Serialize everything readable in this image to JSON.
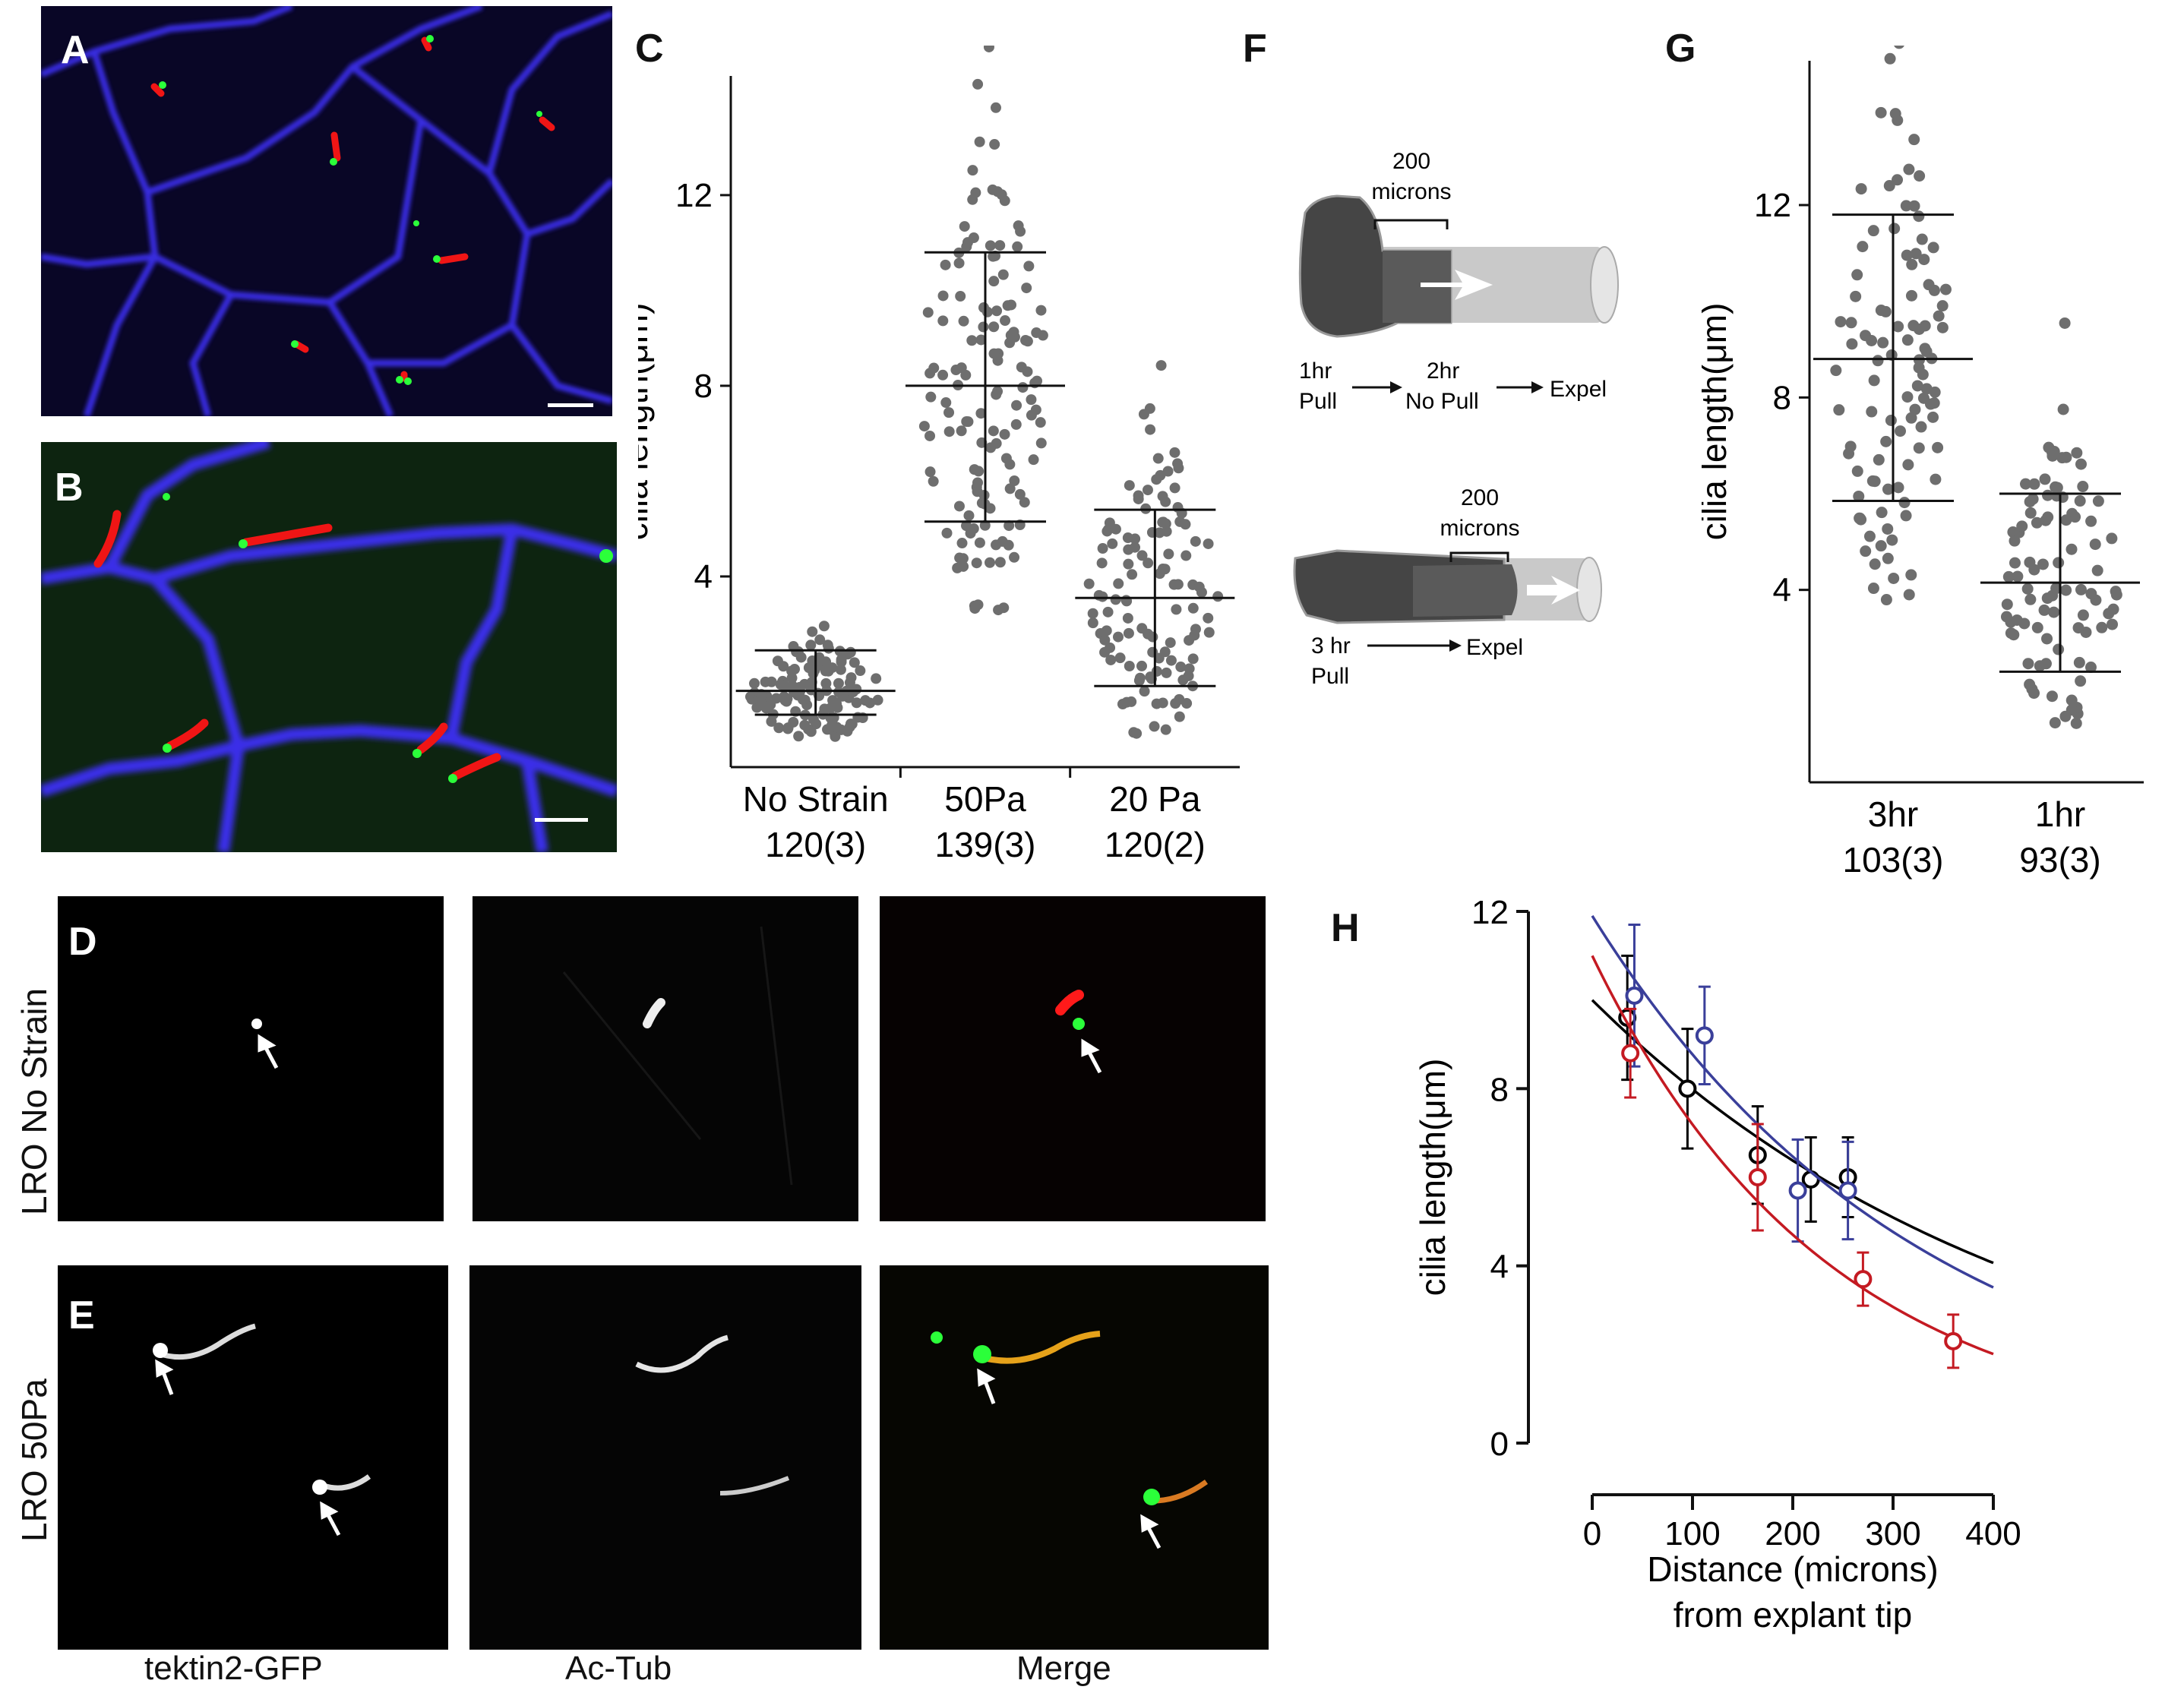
{
  "panels": {
    "A": {
      "letter": "A"
    },
    "B": {
      "letter": "B"
    },
    "C": {
      "letter": "C"
    },
    "D": {
      "letter": "D"
    },
    "E": {
      "letter": "E"
    },
    "F": {
      "letter": "F"
    },
    "G": {
      "letter": "G"
    },
    "H": {
      "letter": "H"
    }
  },
  "row_labels": {
    "D": "LRO No Strain",
    "E": "LRO 50Pa"
  },
  "column_labels": [
    "tektin2-GFP",
    "Ac-Tub",
    "Merge"
  ],
  "diagram_F": {
    "top": {
      "length_top": "200",
      "length_bottom": "microns",
      "step1_a": "1hr",
      "step1_b": "Pull",
      "step2_a": "2hr",
      "step2_b": "No Pull",
      "step3": "Expel"
    },
    "bottom": {
      "length_top": "200",
      "length_bottom": "microns",
      "step1_a": "3 hr",
      "step1_b": "Pull",
      "step2": "Expel"
    }
  },
  "colors": {
    "blue": "#2a2ad8",
    "red": "#e01818",
    "green": "#2bff3a",
    "dot": "#6e6e6e",
    "fit_blue": "#2f3591",
    "fit_red": "#c0151d",
    "fit_black": "#000000"
  },
  "chart_data": [
    {
      "id": "C",
      "type": "scatter",
      "ylabel": "cilia length(μm)",
      "ylim": [
        0,
        14.5
      ],
      "yticks": [
        4,
        8,
        12
      ],
      "categories": [
        {
          "name": "No Strain",
          "n": "120(3)",
          "mean": 1.6,
          "sd_low": 1.1,
          "sd_high": 2.45
        },
        {
          "name": "50Pa",
          "n": "139(3)",
          "mean": 8.0,
          "sd_low": 5.15,
          "sd_high": 10.8
        },
        {
          "name": "20 Pa",
          "n": "120(2)",
          "mean": 3.55,
          "sd_low": 1.7,
          "sd_high": 5.4
        }
      ]
    },
    {
      "id": "G",
      "type": "scatter",
      "ylabel": "cilia length(μm)",
      "ylim": [
        0,
        15
      ],
      "yticks": [
        4,
        8,
        12
      ],
      "categories": [
        {
          "name": "3hr",
          "n": "103(3)",
          "mean": 8.8,
          "sd_low": 5.85,
          "sd_high": 11.8
        },
        {
          "name": "1hr",
          "n": "93(3)",
          "mean": 4.15,
          "sd_low": 2.3,
          "sd_high": 6.0
        }
      ]
    },
    {
      "id": "H",
      "type": "scatter",
      "ylabel": "cilia length(μm)",
      "xlabel_line1": "Distance (microns)",
      "xlabel_line2": "from explant tip",
      "xlim": [
        0,
        400
      ],
      "ylim": [
        0,
        12
      ],
      "xticks": [
        0,
        100,
        200,
        300,
        400
      ],
      "yticks": [
        0,
        4,
        8,
        12
      ],
      "series": [
        {
          "color": "#000000",
          "points": [
            [
              35,
              9.6,
              1.4
            ],
            [
              95,
              8.0,
              1.35
            ],
            [
              165,
              6.5,
              1.1
            ],
            [
              218,
              5.95,
              0.95
            ],
            [
              255,
              6.0,
              0.9
            ]
          ],
          "fit": {
            "a": 10.0,
            "k": 0.00225
          }
        },
        {
          "color": "#3a3f9a",
          "points": [
            [
              42,
              10.1,
              1.6
            ],
            [
              112,
              9.2,
              1.1
            ],
            [
              205,
              5.7,
              1.15
            ],
            [
              255,
              5.7,
              1.1
            ]
          ],
          "fit": {
            "a": 11.9,
            "k": 0.00305
          }
        },
        {
          "color": "#c41a22",
          "points": [
            [
              38,
              8.8,
              1.0
            ],
            [
              165,
              6.0,
              1.2
            ],
            [
              270,
              3.7,
              0.6
            ],
            [
              360,
              2.3,
              0.6
            ]
          ],
          "fit": {
            "a": 11.0,
            "k": 0.00425
          }
        }
      ]
    }
  ]
}
